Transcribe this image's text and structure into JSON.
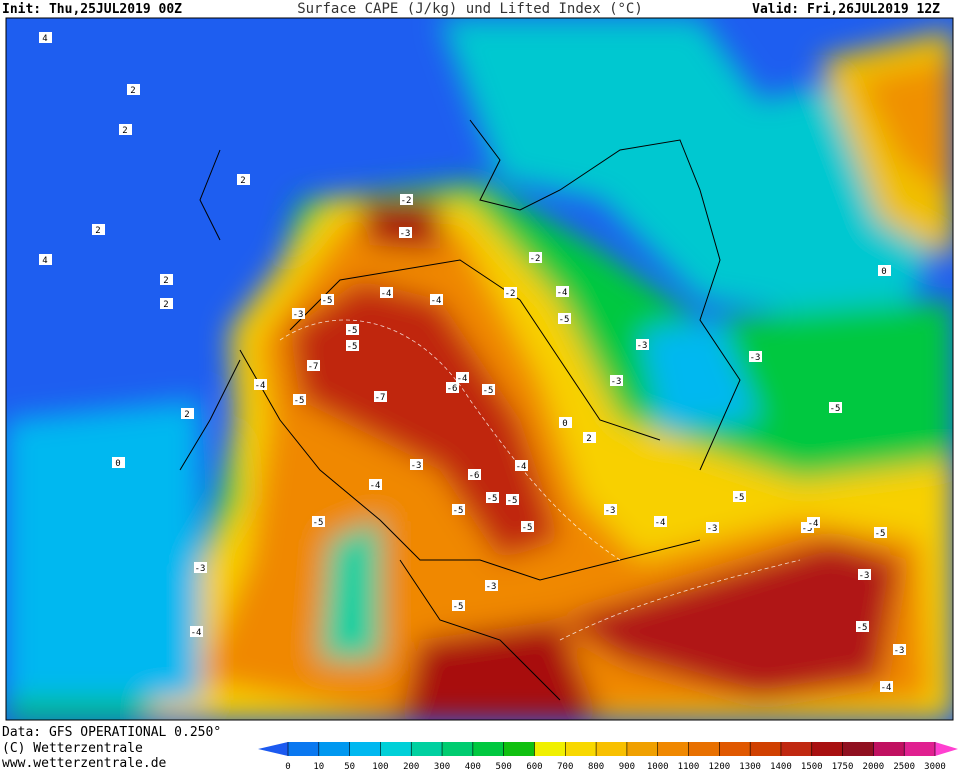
{
  "header": {
    "init": "Init: Thu,25JUL2019 00Z",
    "title": "Surface CAPE (J/kg) und Lifted Index (°C)",
    "valid": "Valid: Fri,26JUL2019 12Z"
  },
  "map": {
    "li_labels": [
      4,
      2,
      2,
      2,
      -2,
      4,
      2,
      2,
      -3,
      -5,
      -3,
      -5,
      -4,
      -7,
      -5,
      -4,
      -5,
      -7,
      -4,
      -6,
      -5,
      -4,
      -5,
      -4,
      -5,
      -5,
      -3,
      -4,
      -5,
      -6,
      -5,
      -4,
      -5,
      -3,
      -3,
      -2,
      -3,
      0,
      2,
      -3,
      -4,
      -3,
      -5,
      -5,
      -4,
      -5,
      -5,
      -3,
      -5,
      -3,
      -4,
      2,
      0,
      2,
      -3,
      -4,
      -5,
      -3,
      -2,
      0
    ]
  },
  "footer": {
    "source": "Data: GFS OPERATIONAL 0.250°",
    "copyright": "(C) Wetterzentrale",
    "url": "www.wetterzentrale.de"
  },
  "legend": {
    "labels": [
      0,
      10,
      50,
      100,
      200,
      300,
      400,
      500,
      600,
      700,
      800,
      900,
      1000,
      1100,
      1200,
      1300,
      1400,
      1500,
      1750,
      2000,
      2500,
      3000
    ],
    "colors": [
      "#1c5af0",
      "#0a78f0",
      "#0098f0",
      "#00b8f0",
      "#00d0d8",
      "#00d0a0",
      "#00cc70",
      "#00c840",
      "#10c010",
      "#f0f000",
      "#f8d800",
      "#f8c000",
      "#f0a000",
      "#f08800",
      "#e87000",
      "#e05800",
      "#d04000",
      "#c02810",
      "#a81010",
      "#901020",
      "#c01060",
      "#e02090",
      "#ff40d0"
    ]
  }
}
